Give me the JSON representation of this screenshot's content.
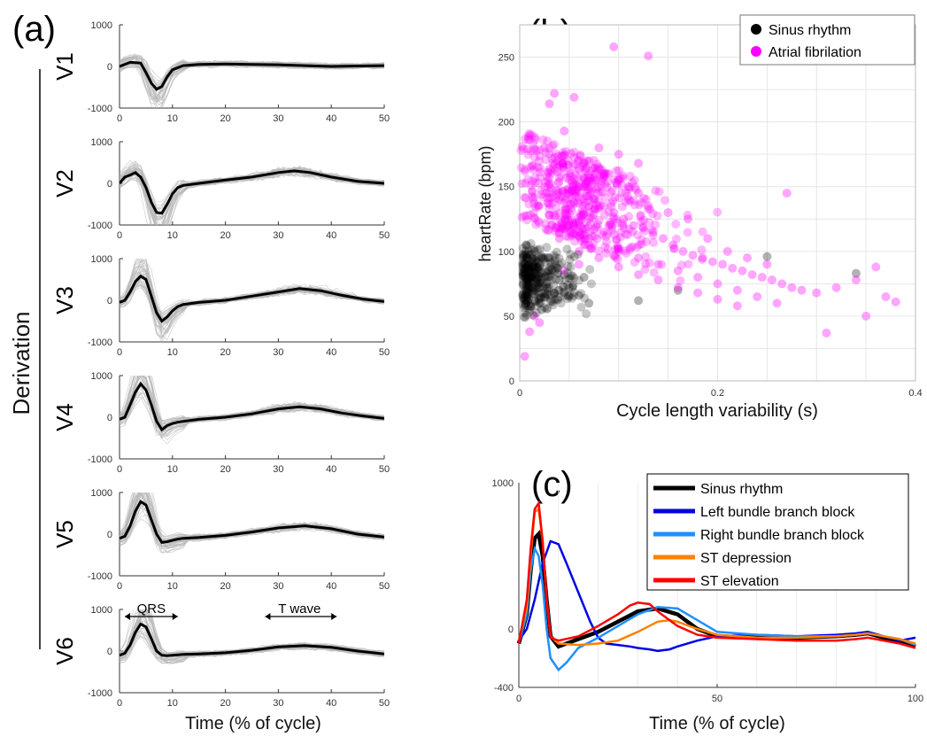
{
  "panel_labels": {
    "a": "(a)",
    "b": "(b)",
    "c": "(c)"
  },
  "colors": {
    "trace_gray": "#b4b4b4",
    "mean_black": "#000000",
    "sinus": "#000000",
    "af": "#ff00ff",
    "lbbb": "#0000e6",
    "rbbb": "#1e90ff",
    "st_dep": "#ff8000",
    "st_elev": "#ff0000"
  },
  "chart_data": [
    {
      "id": "a",
      "type": "line",
      "ylabel": "Derivation",
      "xlabel": "Time (% of cycle)",
      "xlim": [
        0,
        50
      ],
      "ylim": [
        -1000,
        1000
      ],
      "x_ticks": [
        "0",
        "10",
        "20",
        "30",
        "40",
        "50"
      ],
      "y_ticks": [
        "1000",
        "0",
        "-1000"
      ],
      "annotations": [
        "QRS",
        "T wave"
      ],
      "leads": [
        {
          "name": "V1",
          "mean_x": [
            0,
            2,
            4,
            5,
            6,
            7,
            8,
            9,
            10,
            12,
            15,
            20,
            25,
            30,
            35,
            40,
            45,
            50
          ],
          "mean_y": [
            0,
            100,
            80,
            -150,
            -400,
            -550,
            -480,
            -250,
            -80,
            20,
            50,
            60,
            50,
            40,
            20,
            0,
            10,
            20
          ]
        },
        {
          "name": "V2",
          "mean_x": [
            0,
            1,
            2,
            3,
            4,
            5,
            6,
            7,
            8,
            9,
            10,
            11,
            12,
            15,
            20,
            25,
            30,
            33,
            36,
            40,
            45,
            50
          ],
          "mean_y": [
            0,
            150,
            200,
            260,
            150,
            -100,
            -450,
            -700,
            -720,
            -500,
            -250,
            -100,
            -50,
            0,
            80,
            150,
            260,
            300,
            260,
            150,
            50,
            0
          ]
        },
        {
          "name": "V3",
          "mean_x": [
            0,
            1,
            2,
            3,
            4,
            5,
            6,
            7,
            8,
            9,
            10,
            11,
            12,
            15,
            20,
            25,
            30,
            34,
            38,
            42,
            46,
            50
          ],
          "mean_y": [
            -50,
            0,
            200,
            450,
            580,
            500,
            100,
            -300,
            -500,
            -400,
            -250,
            -150,
            -100,
            -50,
            0,
            100,
            200,
            280,
            230,
            120,
            30,
            -30
          ]
        },
        {
          "name": "V4",
          "mean_x": [
            0,
            1,
            2,
            3,
            4,
            5,
            6,
            7,
            8,
            9,
            10,
            11,
            12,
            15,
            20,
            25,
            30,
            34,
            38,
            42,
            46,
            50
          ],
          "mean_y": [
            -50,
            0,
            300,
            600,
            800,
            650,
            300,
            -100,
            -300,
            -200,
            -150,
            -120,
            -100,
            -50,
            0,
            80,
            200,
            250,
            200,
            100,
            30,
            -30
          ]
        },
        {
          "name": "V5",
          "mean_x": [
            0,
            1,
            2,
            3,
            4,
            5,
            6,
            7,
            8,
            9,
            10,
            11,
            12,
            15,
            20,
            25,
            30,
            35,
            40,
            45,
            50
          ],
          "mean_y": [
            -100,
            -50,
            200,
            550,
            780,
            700,
            350,
            0,
            -200,
            -180,
            -150,
            -120,
            -100,
            -80,
            -30,
            50,
            150,
            200,
            130,
            0,
            -70
          ]
        },
        {
          "name": "V6",
          "mean_x": [
            0,
            1,
            2,
            3,
            4,
            5,
            6,
            7,
            8,
            9,
            10,
            11,
            12,
            15,
            20,
            25,
            30,
            35,
            40,
            45,
            50
          ],
          "mean_y": [
            -100,
            -50,
            150,
            450,
            650,
            580,
            300,
            0,
            -100,
            -110,
            -100,
            -90,
            -80,
            -70,
            -40,
            20,
            100,
            130,
            90,
            0,
            -70
          ]
        }
      ]
    },
    {
      "id": "b",
      "type": "scatter",
      "xlabel": "Cycle length variability (s)",
      "ylabel": "heartRate (bpm)",
      "xlim": [
        0,
        0.4
      ],
      "ylim": [
        0,
        275
      ],
      "x_ticks": [
        0,
        0.2,
        0.4
      ],
      "x_tick_labels": [
        "0",
        "0.2",
        "0.4"
      ],
      "y_ticks": [
        0,
        50,
        100,
        150,
        200,
        250
      ],
      "legend": [
        "Sinus rhythm",
        "Atrial fibrilation"
      ],
      "grid": true,
      "legend_position": "top-right",
      "series": [
        {
          "name": "Sinus rhythm",
          "points": [
            [
              0.01,
              80
            ],
            [
              0.02,
              75
            ],
            [
              0.015,
              70
            ],
            [
              0.03,
              85
            ],
            [
              0.025,
              65
            ],
            [
              0.005,
              90
            ],
            [
              0.012,
              72
            ],
            [
              0.04,
              78
            ],
            [
              0.035,
              68
            ],
            [
              0.02,
              60
            ],
            [
              0.045,
              82
            ],
            [
              0.008,
              95
            ],
            [
              0.03,
              95
            ],
            [
              0.05,
              72
            ],
            [
              0.06,
              66
            ],
            [
              0.018,
              88
            ],
            [
              0.022,
              55
            ],
            [
              0.015,
              100
            ],
            [
              0.065,
              80
            ],
            [
              0.07,
              60
            ],
            [
              0.25,
              96
            ],
            [
              0.34,
              83
            ],
            [
              0.16,
              70
            ],
            [
              0.12,
              62
            ]
          ]
        },
        {
          "name": "Atrial fibrilation",
          "points": [
            [
              0.095,
              258
            ],
            [
              0.13,
              251
            ],
            [
              0.035,
              222
            ],
            [
              0.055,
              219
            ],
            [
              0.03,
              214
            ],
            [
              0.045,
              193
            ],
            [
              0.025,
              180
            ],
            [
              0.015,
              179
            ],
            [
              0.07,
              170
            ],
            [
              0.08,
              165
            ],
            [
              0.09,
              160
            ],
            [
              0.1,
              155
            ],
            [
              0.11,
              150
            ],
            [
              0.12,
              145
            ],
            [
              0.06,
              150
            ],
            [
              0.075,
              140
            ],
            [
              0.085,
              135
            ],
            [
              0.095,
              130
            ],
            [
              0.105,
              125
            ],
            [
              0.115,
              120
            ],
            [
              0.125,
              118
            ],
            [
              0.135,
              115
            ],
            [
              0.145,
              110
            ],
            [
              0.155,
              105
            ],
            [
              0.165,
              100
            ],
            [
              0.175,
              97
            ],
            [
              0.185,
              95
            ],
            [
              0.195,
              92
            ],
            [
              0.205,
              90
            ],
            [
              0.215,
              87
            ],
            [
              0.225,
              85
            ],
            [
              0.235,
              82
            ],
            [
              0.245,
              80
            ],
            [
              0.255,
              78
            ],
            [
              0.265,
              75
            ],
            [
              0.275,
              72
            ],
            [
              0.285,
              70
            ],
            [
              0.3,
              68
            ],
            [
              0.32,
              72
            ],
            [
              0.34,
              78
            ],
            [
              0.36,
              88
            ],
            [
              0.38,
              61
            ],
            [
              0.37,
              65
            ],
            [
              0.35,
              50
            ],
            [
              0.31,
              37
            ],
            [
              0.27,
              145
            ],
            [
              0.02,
              45
            ],
            [
              0.01,
              38
            ],
            [
              0.005,
              19
            ],
            [
              0.015,
              50
            ],
            [
              0.04,
              110
            ],
            [
              0.05,
              120
            ],
            [
              0.065,
              105
            ],
            [
              0.085,
              115
            ],
            [
              0.1,
              100
            ],
            [
              0.12,
              95
            ],
            [
              0.14,
              90
            ],
            [
              0.16,
              85
            ],
            [
              0.18,
              80
            ],
            [
              0.2,
              75
            ],
            [
              0.22,
              70
            ],
            [
              0.24,
              65
            ],
            [
              0.26,
              60
            ],
            [
              0.15,
              130
            ],
            [
              0.17,
              125
            ],
            [
              0.13,
              135
            ],
            [
              0.11,
              140
            ],
            [
              0.09,
              120
            ],
            [
              0.07,
              110
            ],
            [
              0.06,
              100
            ],
            [
              0.08,
              95
            ],
            [
              0.1,
              88
            ],
            [
              0.12,
              82
            ],
            [
              0.14,
              78
            ],
            [
              0.16,
              72
            ],
            [
              0.18,
              68
            ],
            [
              0.2,
              63
            ],
            [
              0.22,
              58
            ],
            [
              0.19,
              110
            ],
            [
              0.21,
              100
            ],
            [
              0.23,
              95
            ],
            [
              0.25,
              90
            ],
            [
              0.08,
              180
            ],
            [
              0.1,
              175
            ],
            [
              0.12,
              168
            ],
            [
              0.05,
              160
            ],
            [
              0.04,
              140
            ],
            [
              0.03,
              128
            ],
            [
              0.06,
              90
            ],
            [
              0.045,
              85
            ]
          ]
        }
      ]
    },
    {
      "id": "c",
      "type": "line",
      "xlabel": "Time (% of cycle)",
      "xlim": [
        0,
        100
      ],
      "ylim": [
        -400,
        1000
      ],
      "x_ticks": [
        0,
        50,
        100
      ],
      "y_ticks": [
        "1000",
        "0",
        "-400"
      ],
      "legend_position": "top-right",
      "series": [
        {
          "name": "Sinus rhythm",
          "color": "#000000",
          "x": [
            0,
            2,
            3,
            4,
            5,
            6,
            7,
            8,
            10,
            15,
            20,
            25,
            30,
            35,
            40,
            45,
            50,
            60,
            70,
            80,
            85,
            88,
            92,
            96,
            100
          ],
          "y": [
            -100,
            100,
            400,
            620,
            650,
            500,
            200,
            -50,
            -120,
            -70,
            -20,
            50,
            120,
            140,
            100,
            0,
            -50,
            -60,
            -60,
            -50,
            -40,
            -30,
            -60,
            -80,
            -120
          ]
        },
        {
          "name": "Left bundle branch block",
          "color": "#0000e6",
          "x": [
            0,
            2,
            4,
            6,
            8,
            10,
            12,
            15,
            18,
            20,
            22,
            25,
            28,
            30,
            33,
            35,
            38,
            40,
            45,
            50,
            60,
            70,
            80,
            85,
            88,
            92,
            96,
            100
          ],
          "y": [
            -80,
            0,
            200,
            450,
            600,
            580,
            450,
            250,
            50,
            -60,
            -100,
            -110,
            -120,
            -130,
            -140,
            -150,
            -140,
            -120,
            -80,
            -50,
            -40,
            -50,
            -40,
            -30,
            -20,
            -50,
            -80,
            -60
          ]
        },
        {
          "name": "Right bundle branch block",
          "color": "#1e90ff",
          "x": [
            0,
            2,
            3,
            4,
            5,
            6,
            7,
            8,
            10,
            12,
            15,
            20,
            25,
            30,
            35,
            40,
            45,
            50,
            60,
            70,
            80,
            85,
            88,
            92,
            96,
            100
          ],
          "y": [
            -100,
            100,
            400,
            550,
            500,
            300,
            0,
            -200,
            -280,
            -230,
            -130,
            -60,
            20,
            100,
            150,
            140,
            60,
            -20,
            -40,
            -50,
            -50,
            -40,
            -30,
            -50,
            -70,
            -110
          ]
        },
        {
          "name": "ST depression",
          "color": "#ff8000",
          "x": [
            0,
            2,
            3,
            4,
            5,
            6,
            7,
            8,
            10,
            15,
            20,
            25,
            30,
            35,
            38,
            40,
            45,
            50,
            60,
            70,
            80,
            85,
            88,
            92,
            96,
            100
          ],
          "y": [
            -80,
            150,
            500,
            800,
            820,
            600,
            200,
            -50,
            -100,
            -110,
            -100,
            -80,
            -20,
            50,
            60,
            50,
            0,
            -40,
            -60,
            -60,
            -50,
            -40,
            -30,
            -50,
            -70,
            -100
          ]
        },
        {
          "name": "ST elevation",
          "color": "#ff0000",
          "x": [
            0,
            2,
            3,
            4,
            5,
            6,
            7,
            8,
            10,
            15,
            20,
            25,
            28,
            30,
            33,
            35,
            40,
            45,
            50,
            60,
            70,
            80,
            85,
            88,
            92,
            96,
            100
          ],
          "y": [
            -100,
            200,
            550,
            820,
            860,
            600,
            200,
            -60,
            -80,
            -50,
            20,
            100,
            160,
            180,
            170,
            120,
            20,
            -40,
            -60,
            -70,
            -80,
            -80,
            -70,
            -60,
            -80,
            -100,
            -130
          ]
        }
      ]
    }
  ]
}
